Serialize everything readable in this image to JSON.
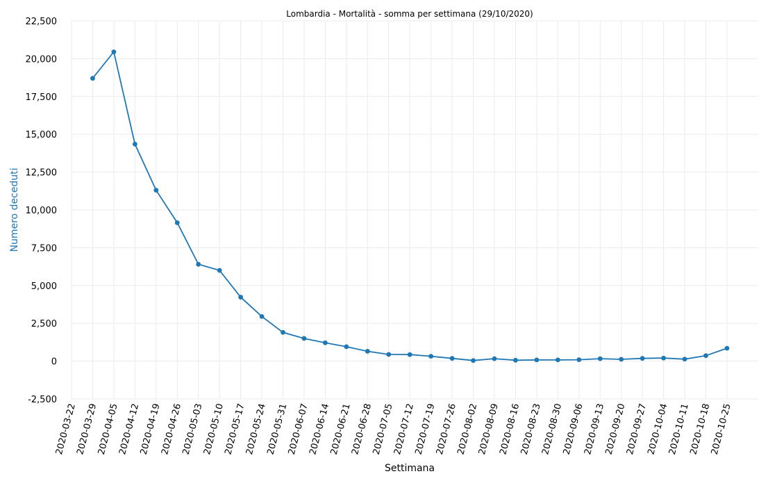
{
  "chart_data": {
    "type": "line",
    "title": "Lombardia - Mortalità - somma per settimana (29/10/2020)",
    "xlabel": "Settimana",
    "ylabel": "Numero deceduti",
    "ylim": [
      -2500,
      22500
    ],
    "yticks": [
      "-2,500",
      "0",
      "2,500",
      "5,000",
      "7,500",
      "10,000",
      "12,500",
      "15,000",
      "17,500",
      "20,000",
      "22,500"
    ],
    "ytick_values": [
      -2500,
      0,
      2500,
      5000,
      7500,
      10000,
      12500,
      15000,
      17500,
      20000,
      22500
    ],
    "grid": true,
    "line_color": "#1f77b4",
    "ylabel_color": "#1f77b4",
    "categories": [
      "2020-03-22",
      "2020-03-29",
      "2020-04-05",
      "2020-04-12",
      "2020-04-19",
      "2020-04-26",
      "2020-05-03",
      "2020-05-10",
      "2020-05-17",
      "2020-05-24",
      "2020-05-31",
      "2020-06-07",
      "2020-06-14",
      "2020-06-21",
      "2020-06-28",
      "2020-07-05",
      "2020-07-12",
      "2020-07-19",
      "2020-07-26",
      "2020-08-02",
      "2020-08-09",
      "2020-08-16",
      "2020-08-23",
      "2020-08-30",
      "2020-09-06",
      "2020-09-13",
      "2020-09-20",
      "2020-09-27",
      "2020-10-04",
      "2020-10-11",
      "2020-10-18",
      "2020-10-25"
    ],
    "values": [
      null,
      18700,
      20450,
      14350,
      11300,
      9150,
      6400,
      6000,
      4230,
      2950,
      1900,
      1500,
      1210,
      950,
      650,
      440,
      430,
      320,
      180,
      40,
      160,
      60,
      80,
      80,
      90,
      160,
      120,
      180,
      200,
      130,
      360,
      850
    ]
  }
}
